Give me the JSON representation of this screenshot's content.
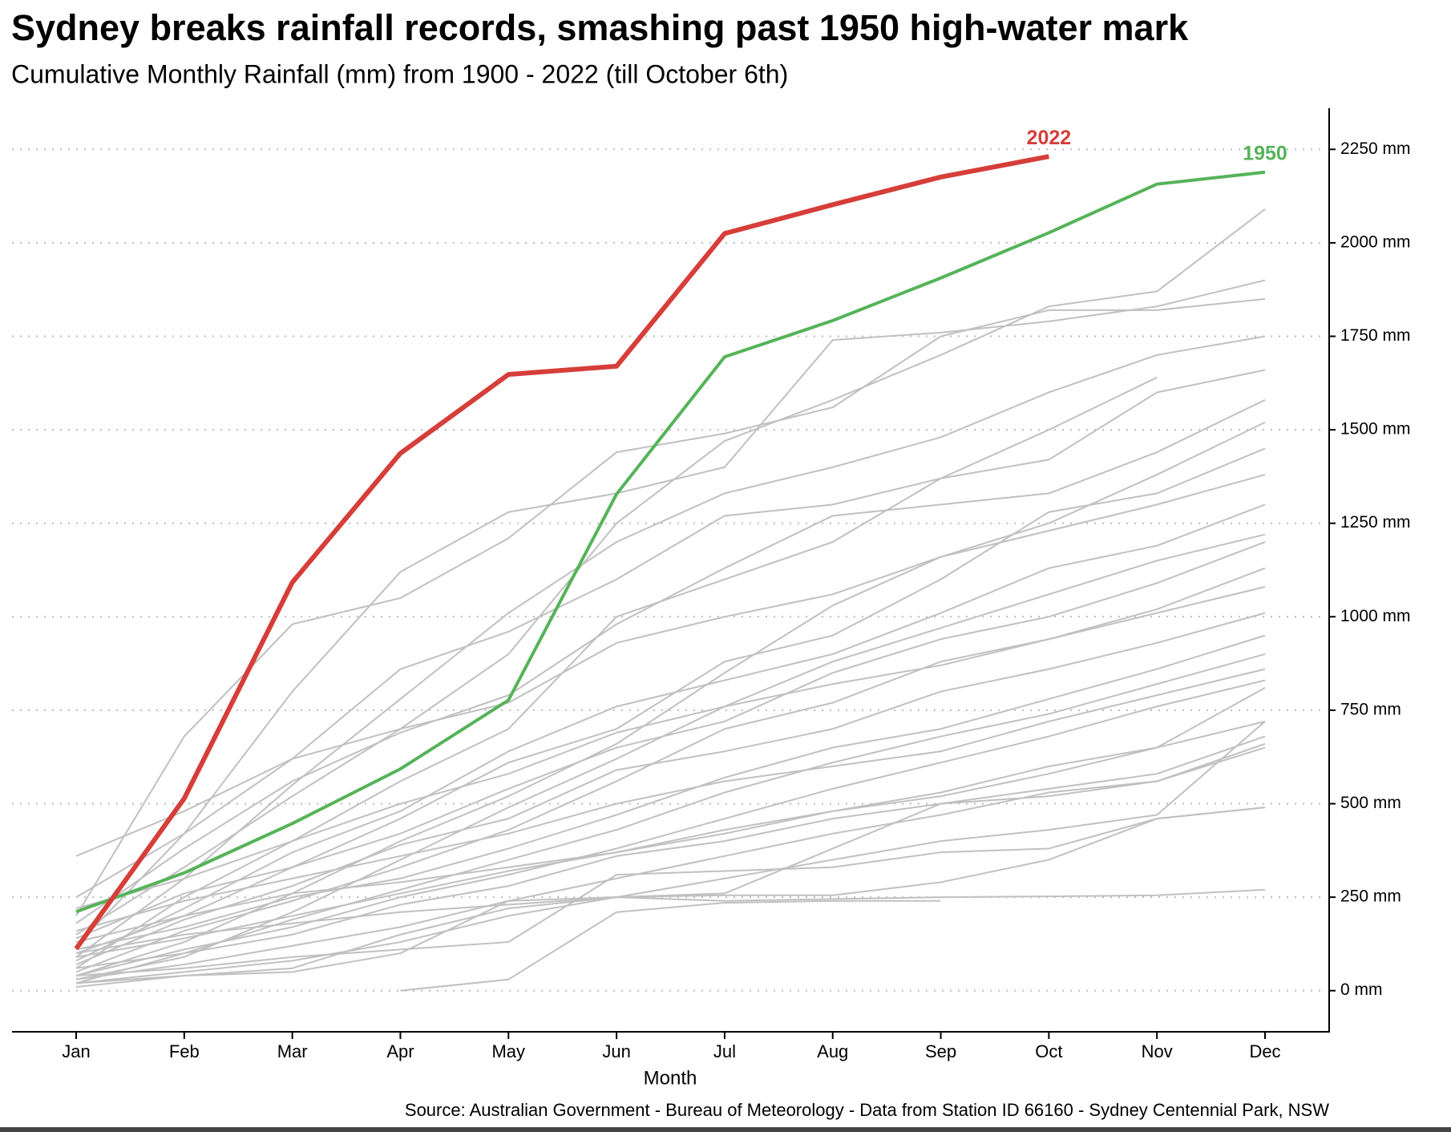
{
  "chart_data": {
    "type": "line",
    "title": "Sydney breaks rainfall records, smashing past 1950 high-water mark",
    "subtitle": "Cumulative Monthly Rainfall (mm) from 1900 - 2022 (till October 6th)",
    "x_label": "Month",
    "source": "Source: Australian Government - Bureau of Meteorology - Data from Station ID 66160 - Sydney Centennial Park, NSW",
    "categories": [
      "Jan",
      "Feb",
      "Mar",
      "Apr",
      "May",
      "Jun",
      "Jul",
      "Aug",
      "Sep",
      "Oct",
      "Nov",
      "Dec"
    ],
    "ylim": [
      -110,
      2360
    ],
    "yticks": [
      {
        "value": 0,
        "label": "0 mm"
      },
      {
        "value": 250,
        "label": "250 mm"
      },
      {
        "value": 500,
        "label": "500 mm"
      },
      {
        "value": 750,
        "label": "750 mm"
      },
      {
        "value": 1000,
        "label": "1000 mm"
      },
      {
        "value": 1250,
        "label": "1250 mm"
      },
      {
        "value": 1500,
        "label": "1500 mm"
      },
      {
        "value": 1750,
        "label": "1750 mm"
      },
      {
        "value": 2000,
        "label": "2000 mm"
      },
      {
        "value": 2250,
        "label": "2250 mm"
      }
    ],
    "grid": true,
    "series": [
      {
        "name": "2022",
        "color": "#d63e3a",
        "values": [
          112,
          514,
          1092,
          1437,
          1648,
          1670,
          2025,
          2102,
          2176,
          2231,
          null,
          null
        ]
      },
      {
        "name": "1950",
        "color": "#55b359",
        "values": [
          211,
          315,
          447,
          593,
          777,
          1328,
          1695,
          1792,
          1906,
          2027,
          2157,
          2189
        ]
      },
      {
        "color": "#c0c0c0",
        "values": [
          150,
          330,
          520,
          700,
          900,
          1250,
          1470,
          1580,
          1700,
          1830,
          1870,
          2090
        ]
      },
      {
        "color": "#c0c0c0",
        "values": [
          120,
          420,
          800,
          1120,
          1280,
          1330,
          1400,
          1740,
          1760,
          1790,
          1830,
          1900
        ]
      },
      {
        "color": "#c0c0c0",
        "values": [
          200,
          680,
          980,
          1050,
          1210,
          1440,
          1490,
          1560,
          1750,
          1820,
          1820,
          1850
        ]
      },
      {
        "color": "#c0c0c0",
        "values": [
          90,
          300,
          550,
          780,
          1010,
          1200,
          1330,
          1400,
          1480,
          1600,
          1700,
          1750
        ]
      },
      {
        "color": "#c0c0c0",
        "values": [
          250,
          420,
          620,
          860,
          960,
          1100,
          1270,
          1300,
          1370,
          1420,
          1600,
          1660
        ]
      },
      {
        "color": "#c0c0c0",
        "values": [
          60,
          250,
          400,
          560,
          700,
          1000,
          1100,
          1200,
          1370,
          1500,
          1640,
          null
        ]
      },
      {
        "color": "#c0c0c0",
        "values": [
          180,
          380,
          560,
          690,
          790,
          980,
          1130,
          1270,
          1300,
          1330,
          1440,
          1580
        ]
      },
      {
        "color": "#c0c0c0",
        "values": [
          40,
          130,
          260,
          400,
          520,
          660,
          850,
          1030,
          1160,
          1250,
          1380,
          1520
        ]
      },
      {
        "color": "#c0c0c0",
        "values": [
          100,
          200,
          330,
          460,
          610,
          700,
          880,
          950,
          1100,
          1280,
          1330,
          1450
        ]
      },
      {
        "color": "#c0c0c0",
        "values": [
          360,
          480,
          620,
          700,
          770,
          930,
          1000,
          1060,
          1160,
          1230,
          1300,
          1380
        ]
      },
      {
        "color": "#c0c0c0",
        "values": [
          80,
          220,
          370,
          480,
          640,
          760,
          830,
          900,
          1010,
          1130,
          1190,
          1300
        ]
      },
      {
        "color": "#c0c0c0",
        "values": [
          30,
          90,
          210,
          350,
          490,
          620,
          760,
          880,
          970,
          1060,
          1150,
          1220
        ]
      },
      {
        "color": "#c0c0c0",
        "values": [
          140,
          260,
          330,
          420,
          540,
          650,
          720,
          850,
          940,
          1000,
          1090,
          1200
        ]
      },
      {
        "color": "#c0c0c0",
        "values": [
          50,
          160,
          240,
          330,
          430,
          560,
          700,
          770,
          880,
          940,
          1020,
          1130
        ]
      },
      {
        "color": "#c0c0c0",
        "values": [
          220,
          300,
          400,
          500,
          580,
          690,
          760,
          820,
          870,
          940,
          1010,
          1080
        ]
      },
      {
        "color": "#c0c0c0",
        "values": [
          70,
          190,
          280,
          390,
          460,
          590,
          640,
          700,
          800,
          860,
          930,
          1010
        ]
      },
      {
        "color": "#c0c0c0",
        "values": [
          110,
          170,
          250,
          300,
          380,
          470,
          570,
          650,
          700,
          780,
          860,
          950
        ]
      },
      {
        "color": "#c0c0c0",
        "values": [
          20,
          100,
          190,
          270,
          350,
          430,
          530,
          610,
          680,
          740,
          820,
          900
        ]
      },
      {
        "color": "#c0c0c0",
        "values": [
          160,
          240,
          300,
          360,
          420,
          500,
          560,
          600,
          640,
          720,
          790,
          860
        ]
      },
      {
        "color": "#c0c0c0",
        "values": [
          40,
          110,
          170,
          250,
          310,
          380,
          460,
          540,
          610,
          680,
          760,
          830
        ]
      },
      {
        "color": "#c0c0c0",
        "values": [
          90,
          140,
          200,
          260,
          320,
          370,
          430,
          480,
          530,
          600,
          650,
          810
        ]
      },
      {
        "color": "#c0c0c0",
        "values": [
          130,
          200,
          260,
          290,
          330,
          370,
          420,
          480,
          520,
          580,
          650,
          720
        ]
      },
      {
        "color": "#c0c0c0",
        "values": [
          60,
          100,
          150,
          230,
          280,
          360,
          400,
          460,
          500,
          540,
          580,
          680
        ]
      },
      {
        "color": "#c0c0c0",
        "values": [
          30,
          70,
          120,
          170,
          240,
          300,
          360,
          420,
          470,
          530,
          560,
          650
        ]
      },
      {
        "color": "#c0c0c0",
        "values": [
          20,
          50,
          80,
          130,
          200,
          250,
          300,
          350,
          400,
          430,
          470,
          720
        ]
      },
      {
        "color": "#c0c0c0",
        "values": [
          100,
          150,
          180,
          210,
          230,
          250,
          260,
          380,
          500,
          520,
          560,
          660
        ]
      },
      {
        "color": "#c0c0c0",
        "values": [
          40,
          60,
          90,
          110,
          130,
          310,
          320,
          330,
          370,
          380,
          460,
          490
        ]
      },
      {
        "color": "#c0c0c0",
        "values": [
          10,
          40,
          50,
          100,
          240,
          250,
          255,
          255,
          290,
          350,
          460,
          490
        ]
      },
      {
        "color": "#c0c0c0",
        "values": [
          20,
          40,
          60,
          150,
          220,
          250,
          240,
          245,
          250,
          252,
          255,
          270
        ]
      },
      {
        "color": "#c0c0c0",
        "values": [
          null,
          null,
          null,
          0,
          30,
          210,
          235,
          240,
          240,
          null,
          null,
          null
        ]
      }
    ]
  }
}
